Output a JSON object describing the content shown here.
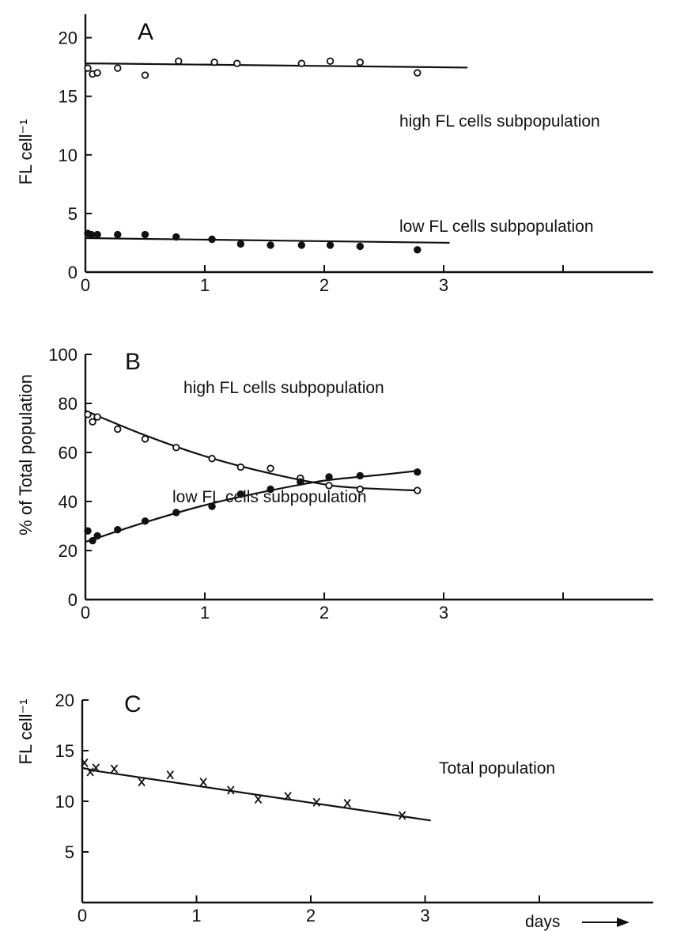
{
  "chart_data": [
    {
      "type": "scatter",
      "panel_label": "A",
      "ylabel": "FL cell⁻¹",
      "xlabel": "",
      "xlim": [
        0,
        5
      ],
      "ylim": [
        0,
        22
      ],
      "x_ticks": [
        0,
        1,
        2,
        3,
        4
      ],
      "x_tick_labels": [
        "0",
        "1",
        "2",
        "3",
        ""
      ],
      "y_ticks": [
        0,
        5,
        10,
        15,
        20
      ],
      "y_tick_labels": [
        "0",
        "5",
        "10",
        "15",
        "20"
      ],
      "grid": false,
      "series": [
        {
          "name": "high FL cells subpopulation",
          "marker": "open-circle",
          "x": [
            0.02,
            0.06,
            0.1,
            0.27,
            0.5,
            0.78,
            1.08,
            1.27,
            1.81,
            2.05,
            2.3,
            2.78
          ],
          "y": [
            17.4,
            16.9,
            17.0,
            17.4,
            16.8,
            18.0,
            17.9,
            17.8,
            17.8,
            18.0,
            17.9,
            17.0
          ],
          "fit": {
            "x": [
              0,
              0.12,
              3.2
            ],
            "y": [
              17.8,
              17.8,
              17.45
            ]
          }
        },
        {
          "name": "low FL cells subpopulation",
          "marker": "filled-circle",
          "x": [
            0.02,
            0.05,
            0.1,
            0.27,
            0.5,
            0.76,
            1.06,
            1.3,
            1.55,
            1.81,
            2.05,
            2.3,
            2.78
          ],
          "y": [
            3.3,
            3.2,
            3.2,
            3.2,
            3.2,
            3.0,
            2.8,
            2.4,
            2.3,
            2.3,
            2.3,
            2.2,
            1.9
          ],
          "fit": {
            "x": [
              0,
              3.05
            ],
            "y": [
              2.9,
              2.5
            ]
          }
        }
      ]
    },
    {
      "type": "scatter",
      "panel_label": "B",
      "ylabel": "% of Total population",
      "xlabel": "",
      "xlim": [
        0,
        5
      ],
      "ylim": [
        0,
        100
      ],
      "x_ticks": [
        0,
        1,
        2,
        3,
        4
      ],
      "x_tick_labels": [
        "0",
        "1",
        "2",
        "3",
        ""
      ],
      "y_ticks": [
        0,
        20,
        40,
        60,
        80,
        100
      ],
      "y_tick_labels": [
        "0",
        "20",
        "40",
        "60",
        "80",
        "100"
      ],
      "grid": false,
      "series": [
        {
          "name": "high FL cells subpopulation",
          "marker": "open-circle",
          "x": [
            0.02,
            0.06,
            0.1,
            0.27,
            0.5,
            0.76,
            1.06,
            1.3,
            1.55,
            1.8,
            2.04,
            2.3,
            2.78
          ],
          "y": [
            75.5,
            72.5,
            74.5,
            69.5,
            65.5,
            62.0,
            57.5,
            54.0,
            53.5,
            49.5,
            46.5,
            45.0,
            44.5
          ],
          "fit": {
            "x": [
              0,
              0.5,
              1.0,
              1.5,
              2.0,
              2.3,
              2.78
            ],
            "y": [
              77,
              67,
              58.5,
              52,
              47,
              45.5,
              44.5
            ]
          }
        },
        {
          "name": "low FL cells subpopulation",
          "marker": "filled-circle",
          "x": [
            0.02,
            0.06,
            0.1,
            0.27,
            0.5,
            0.76,
            1.06,
            1.3,
            1.55,
            1.8,
            2.04,
            2.3,
            2.78
          ],
          "y": [
            28.0,
            24.0,
            26.0,
            28.5,
            32.0,
            35.5,
            38.0,
            43.0,
            45.0,
            48.0,
            50.0,
            50.5,
            52.0
          ],
          "fit": {
            "x": [
              0,
              0.5,
              1.0,
              1.5,
              2.0,
              2.5,
              2.78
            ],
            "y": [
              23.5,
              31.5,
              38.5,
              44,
              48.5,
              51,
              52.5
            ]
          }
        }
      ]
    },
    {
      "type": "scatter",
      "panel_label": "C",
      "ylabel": "FL cell⁻¹",
      "xlabel": "days",
      "xlim": [
        0,
        5
      ],
      "ylim": [
        0,
        20
      ],
      "x_ticks": [
        0,
        1,
        2,
        3,
        4
      ],
      "x_tick_labels": [
        "0",
        "1",
        "2",
        "3",
        ""
      ],
      "y_ticks": [
        5,
        10,
        15,
        20
      ],
      "y_tick_labels": [
        "5",
        "10",
        "15",
        "20"
      ],
      "grid": false,
      "series": [
        {
          "name": "Total population",
          "marker": "x",
          "x": [
            0.02,
            0.07,
            0.12,
            0.28,
            0.52,
            0.77,
            1.06,
            1.3,
            1.54,
            1.8,
            2.05,
            2.32,
            2.8
          ],
          "y": [
            13.8,
            12.9,
            13.3,
            13.2,
            11.9,
            12.6,
            11.9,
            11.1,
            10.2,
            10.5,
            9.9,
            9.8,
            8.6
          ],
          "fit": {
            "x": [
              0,
              0.12,
              3.05
            ],
            "y": [
              13.3,
              13.0,
              8.1
            ]
          }
        }
      ]
    }
  ]
}
